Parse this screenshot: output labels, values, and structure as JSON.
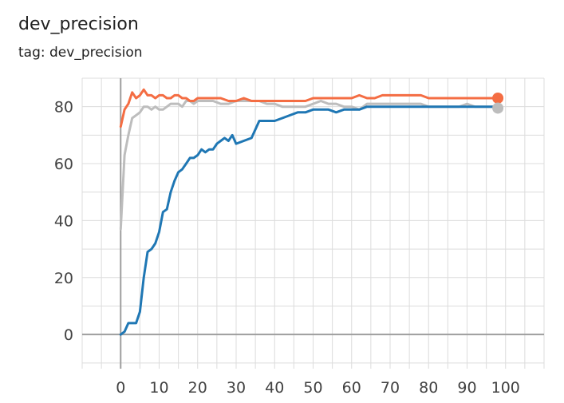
{
  "header": {
    "title": "dev_precision",
    "subtitle": "tag: dev_precision"
  },
  "chart_data": {
    "type": "line",
    "title": "dev_precision",
    "xlabel": "",
    "ylabel": "",
    "xlim": [
      -10,
      110
    ],
    "ylim": [
      -12,
      90
    ],
    "grid": true,
    "x_ticks": [
      0,
      10,
      20,
      30,
      40,
      50,
      60,
      70,
      80,
      90,
      100
    ],
    "y_ticks": [
      0,
      20,
      40,
      60,
      80
    ],
    "series": [
      {
        "color": "#bdbdbd",
        "x": [
          0,
          1,
          2,
          3,
          4,
          5,
          6,
          7,
          8,
          9,
          10,
          11,
          12,
          13,
          14,
          15,
          16,
          17,
          18,
          19,
          20,
          22,
          24,
          26,
          28,
          30,
          32,
          34,
          36,
          38,
          40,
          42,
          44,
          46,
          48,
          50,
          52,
          54,
          56,
          58,
          60,
          62,
          64,
          66,
          68,
          70,
          72,
          74,
          76,
          78,
          80,
          82,
          84,
          86,
          88,
          90,
          92,
          94,
          96,
          98
        ],
        "y": [
          37,
          63,
          70,
          76,
          77,
          78,
          80,
          80,
          79,
          80,
          79,
          79,
          80,
          81,
          81,
          81,
          80,
          82,
          82,
          81,
          82,
          82,
          82,
          81,
          81,
          82,
          82,
          82,
          82,
          81,
          81,
          80,
          80,
          80,
          80,
          81,
          82,
          81,
          81,
          80,
          80,
          79,
          81,
          81,
          81,
          81,
          81,
          81,
          81,
          81,
          80,
          80,
          80,
          80,
          80,
          81,
          80,
          80,
          80,
          80
        ]
      },
      {
        "color": "#f46d43",
        "x": [
          0,
          1,
          2,
          3,
          4,
          5,
          6,
          7,
          8,
          9,
          10,
          11,
          12,
          13,
          14,
          15,
          16,
          17,
          18,
          19,
          20,
          22,
          24,
          26,
          28,
          30,
          32,
          34,
          36,
          38,
          40,
          42,
          44,
          46,
          48,
          50,
          52,
          54,
          56,
          58,
          60,
          62,
          64,
          66,
          68,
          70,
          72,
          74,
          76,
          78,
          80,
          82,
          84,
          86,
          88,
          90,
          92,
          94,
          96,
          98
        ],
        "y": [
          73,
          79,
          81,
          85,
          83,
          84,
          86,
          84,
          84,
          83,
          84,
          84,
          83,
          83,
          84,
          84,
          83,
          83,
          82,
          82,
          83,
          83,
          83,
          83,
          82,
          82,
          83,
          82,
          82,
          82,
          82,
          82,
          82,
          82,
          82,
          83,
          83,
          83,
          83,
          83,
          83,
          84,
          83,
          83,
          84,
          84,
          84,
          84,
          84,
          84,
          83,
          83,
          83,
          83,
          83,
          83,
          83,
          83,
          83,
          83
        ]
      },
      {
        "color": "#1f77b4",
        "x": [
          0,
          1,
          2,
          3,
          4,
          5,
          6,
          7,
          8,
          9,
          10,
          11,
          12,
          13,
          14,
          15,
          16,
          17,
          18,
          19,
          20,
          21,
          22,
          23,
          24,
          25,
          26,
          27,
          28,
          29,
          30,
          32,
          34,
          36,
          38,
          40,
          42,
          44,
          46,
          48,
          50,
          52,
          54,
          56,
          58,
          60,
          62,
          64,
          66,
          68,
          70,
          72,
          74,
          76,
          78,
          80,
          82,
          84,
          86,
          88,
          90,
          92,
          94,
          96,
          98
        ],
        "y": [
          0,
          1,
          4,
          4,
          4,
          8,
          20,
          29,
          30,
          32,
          36,
          43,
          44,
          50,
          54,
          57,
          58,
          60,
          62,
          62,
          63,
          65,
          64,
          65,
          65,
          67,
          68,
          69,
          68,
          70,
          67,
          68,
          69,
          75,
          75,
          75,
          76,
          77,
          78,
          78,
          79,
          79,
          79,
          78,
          79,
          79,
          79,
          80,
          80,
          80,
          80,
          80,
          80,
          80,
          80,
          80,
          80,
          80,
          80,
          80,
          80,
          80,
          80,
          80,
          80
        ]
      }
    ],
    "end_markers": [
      {
        "x": 98,
        "y": 83,
        "color": "#f46d43"
      },
      {
        "x": 98,
        "y": 79.5,
        "color": "#bdbdbd"
      }
    ]
  }
}
